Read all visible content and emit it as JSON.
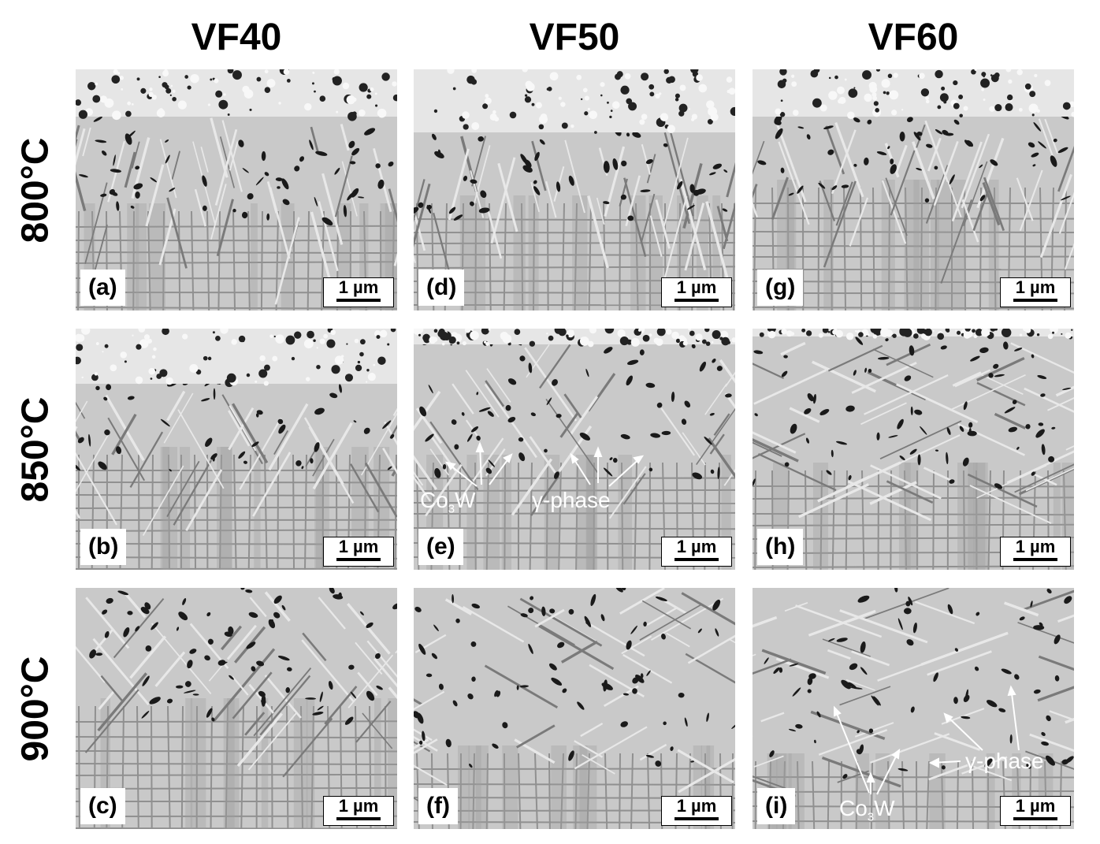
{
  "columns": [
    "VF40",
    "VF50",
    "VF60"
  ],
  "rows": [
    "800°C",
    "850°C",
    "900°C"
  ],
  "scale_label": "1 µm",
  "panels": [
    {
      "label": "(a)"
    },
    {
      "label": "(b)"
    },
    {
      "label": "(c)"
    },
    {
      "label": "(d)"
    },
    {
      "label": "(e)"
    },
    {
      "label": "(f)"
    },
    {
      "label": "(g)"
    },
    {
      "label": "(h)"
    },
    {
      "label": "(i)"
    }
  ],
  "annotations": {
    "e_co3w_main": "Co",
    "e_co3w_sub": "3",
    "e_co3w_end": "W",
    "e_gamma": "γ-phase",
    "i_gamma": "γ-phase",
    "i_co3w_main": "Co",
    "i_co3w_sub": "3",
    "i_co3w_end": "W"
  }
}
